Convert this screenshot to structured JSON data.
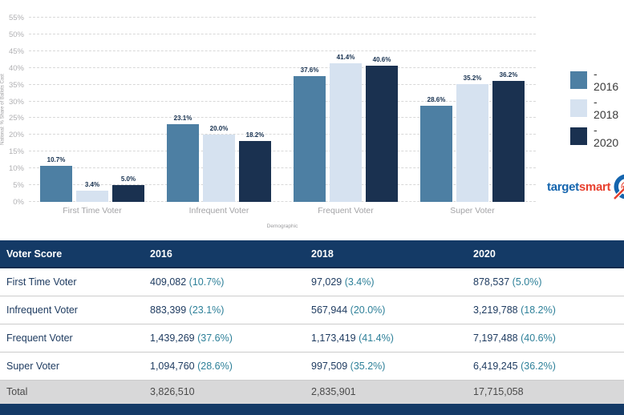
{
  "chart_data": {
    "type": "bar",
    "title": "",
    "x_axis_title": "Demographic",
    "y_axis_title": "National: % Share of Ballots Cast",
    "categories": [
      "First Time Voter",
      "Infrequent Voter",
      "Frequent Voter",
      "Super Voter"
    ],
    "series": [
      {
        "name": "2016",
        "legend_label": "- 2016",
        "color": "#4d7fa3",
        "values": [
          10.7,
          23.1,
          37.6,
          28.6
        ],
        "labels": [
          "10.7%",
          "23.1%",
          "37.6%",
          "28.6%"
        ]
      },
      {
        "name": "2018",
        "legend_label": "- 2018",
        "color": "#d6e2f0",
        "values": [
          3.4,
          20.0,
          41.4,
          35.2
        ],
        "labels": [
          "3.4%",
          "20.0%",
          "41.4%",
          "35.2%"
        ]
      },
      {
        "name": "2020",
        "legend_label": "- 2020",
        "color": "#1a3150",
        "values": [
          5.0,
          18.2,
          40.6,
          36.2
        ],
        "labels": [
          "5.0%",
          "18.2%",
          "40.6%",
          "36.2%"
        ]
      }
    ],
    "ylim": [
      0,
      55
    ],
    "ytick_step": 5,
    "ytick_suffix": "%",
    "grid": "horizontal-dashed",
    "legend_position": "right"
  },
  "table": {
    "columns": [
      "Voter Score",
      "2016",
      "2018",
      "2020"
    ],
    "rows": [
      {
        "label": "First Time Voter",
        "cells": [
          {
            "value": "409,082",
            "pct": "(10.7%)"
          },
          {
            "value": "97,029",
            "pct": "(3.4%)"
          },
          {
            "value": "878,537",
            "pct": "(5.0%)"
          }
        ]
      },
      {
        "label": "Infrequent Voter",
        "cells": [
          {
            "value": "883,399",
            "pct": "(23.1%)"
          },
          {
            "value": "567,944",
            "pct": "(20.0%)"
          },
          {
            "value": "3,219,788",
            "pct": "(18.2%)"
          }
        ]
      },
      {
        "label": "Frequent Voter",
        "cells": [
          {
            "value": "1,439,269",
            "pct": "(37.6%)"
          },
          {
            "value": "1,173,419",
            "pct": "(41.4%)"
          },
          {
            "value": "7,197,488",
            "pct": "(40.6%)"
          }
        ]
      },
      {
        "label": "Super Voter",
        "cells": [
          {
            "value": "1,094,760",
            "pct": "(28.6%)"
          },
          {
            "value": "997,509",
            "pct": "(35.2%)"
          },
          {
            "value": "6,419,245",
            "pct": "(36.2%)"
          }
        ]
      }
    ],
    "total": {
      "label": "Total",
      "cells": [
        "3,826,510",
        "2,835,901",
        "17,715,058"
      ]
    }
  },
  "logo": {
    "part1": "target",
    "part2": "smart"
  },
  "colors": {
    "series_2016": "#4d7fa3",
    "series_2018": "#d6e2f0",
    "series_2020": "#1a3150",
    "table_header_bg": "#143a66",
    "table_text": "#1f3c61",
    "pct_teal": "#2e8099",
    "total_row_bg": "#d8d8d9",
    "bottom_bar_bg": "#143a66",
    "logo_blue": "#1565ae",
    "logo_red": "#e8402e"
  }
}
